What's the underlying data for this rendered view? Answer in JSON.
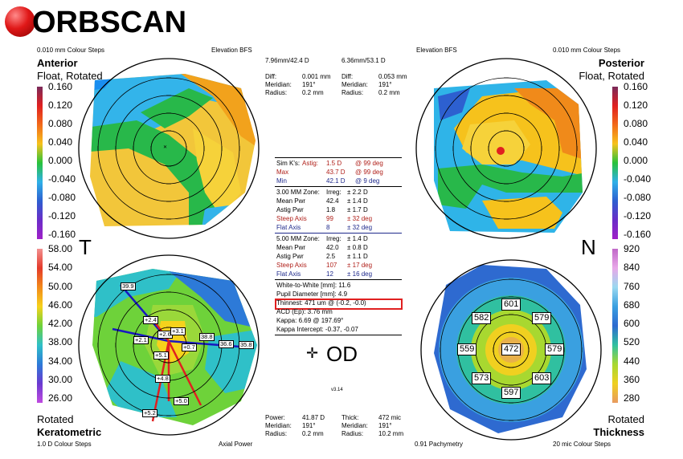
{
  "brand": {
    "name": "ORBSCAN"
  },
  "anterior": {
    "steps": "0.010 mm Colour Steps",
    "ref": "Elevation BFS",
    "title": "Anterior",
    "subtitle": "Float, Rotated",
    "bfs": "7.96mm/42.4 D",
    "diff_label": "Diff:",
    "diff": "0.001 mm",
    "meridian_label": "Meridian:",
    "meridian": "191°",
    "radius_label": "Radius:",
    "radius": "0.2 mm"
  },
  "posterior": {
    "steps": "0.010 mm Colour Steps",
    "ref": "Elevation BFS",
    "title": "Posterior",
    "subtitle": "Float, Rotated",
    "bfs": "6.36mm/53.1 D",
    "diff_label": "Diff:",
    "diff": "0.053 mm",
    "meridian_label": "Meridian:",
    "meridian": "191°",
    "radius_label": "Radius:",
    "radius": "0.2 mm"
  },
  "elevation_scale": {
    "labels": [
      "0.160",
      "0.120",
      "0.080",
      "0.040",
      "0.000",
      "-0.040",
      "-0.080",
      "-0.120",
      "-0.160"
    ],
    "colors": [
      "#7a2a5a",
      "#e02020",
      "#f26a1a",
      "#f6c21c",
      "#28c23a",
      "#2fb0e8",
      "#2d5fd0",
      "#6a2dc8",
      "#a020c8"
    ]
  },
  "kerato_scale": {
    "labels": [
      "58.00",
      "54.00",
      "50.00",
      "46.00",
      "42.00",
      "38.00",
      "34.00",
      "30.00",
      "26.00"
    ],
    "colors": [
      "#f29090",
      "#e43a2a",
      "#f28a1a",
      "#f6d21c",
      "#6ed23a",
      "#2fc0c8",
      "#2d7ad8",
      "#6a3ad0",
      "#c04ae0"
    ]
  },
  "pachy_scale": {
    "labels": [
      "920",
      "840",
      "760",
      "680",
      "600",
      "520",
      "440",
      "360",
      "280"
    ],
    "colors": [
      "#c068c8",
      "#e8a8e8",
      "#9ad8f0",
      "#3aa0e0",
      "#2e6ad0",
      "#30c0a0",
      "#a8d830",
      "#f0d020",
      "#e89a60"
    ]
  },
  "side": {
    "temporal": "T",
    "nasal": "N"
  },
  "center": {
    "simk_label": "Sim K's:",
    "astig_label": "Astig:",
    "astig": "1.5 D",
    "astig_axis": "@ 99 deg",
    "max_label": "Max",
    "max": "43.7 D",
    "max_axis": "@ 99 deg",
    "min_label": "Min",
    "min": "42.1 D",
    "min_axis": "@ 9 deg",
    "zone3_label": "3.00 MM Zone:",
    "irreg_label": "Irreg:",
    "zone3_irreg": "± 2.2 D",
    "mean_label": "Mean Pwr",
    "zone3_mean": "42.4",
    "zone3_mean_sd": "± 1.4 D",
    "astigpwr_label": "Astig Pwr",
    "zone3_astig": "1.8",
    "zone3_astig_sd": "± 1.7 D",
    "steep_label": "Steep Axis",
    "zone3_steep": "99",
    "zone3_steep_sd": "± 32 deg",
    "flat_label": "Flat Axis",
    "zone3_flat": "8",
    "zone3_flat_sd": "± 32 deg",
    "zone5_label": "5.00 MM Zone:",
    "zone5_irreg": "± 1.4 D",
    "zone5_mean": "42.0",
    "zone5_mean_sd": "± 0.8 D",
    "zone5_astig": "2.5",
    "zone5_astig_sd": "± 1.1 D",
    "zone5_steep": "107",
    "zone5_steep_sd": "± 17 deg",
    "zone5_flat": "12",
    "zone5_flat_sd": "± 16 deg",
    "wtw": "White-to-White [mm]: 11.6",
    "pupil": "Pupil Diameter [mm]: 4.9",
    "thinnest": "Thinnest: 471 um @ (-0.2, -0.0)",
    "acd": "ACD (Ep): 3.76 mm",
    "kappa": "Kappa: 6.69 @ 197.69°",
    "kappa_int": "Kappa Intercept: -0.37, -0.07",
    "eye": "OD",
    "version": "v3.14"
  },
  "keratometric": {
    "title": "Keratometric",
    "rotated": "Rotated",
    "steps": "1.0 D Colour Steps",
    "ref": "Axial Power",
    "power_label": "Power:",
    "power": "41.87 D",
    "meridian_label": "Meridian:",
    "meridian": "191°",
    "radius_label": "Radius:",
    "radius": "0.2 mm",
    "map_labels": [
      "39.9",
      "+2.4",
      "+2.6",
      "+3.1",
      "+2.1",
      "38.8",
      "36.6",
      "35.8",
      "+5.1",
      "+0.7",
      "+4.8",
      "+5.0",
      "+5.2"
    ]
  },
  "thickness": {
    "title": "Thickness",
    "rotated": "Rotated",
    "steps": "20 mic Colour Steps",
    "ref": "0.91 Pachymetry",
    "thick_label": "Thick:",
    "thick": "472 mic",
    "meridian_label": "Meridian:",
    "meridian": "191°",
    "radius_label": "Radius:",
    "radius": "10.2 mm",
    "values": {
      "center": "472",
      "top": "601",
      "bottom": "597",
      "left": "559",
      "right": "579",
      "ul": "582",
      "ur": "579",
      "ll": "573",
      "lr": "603"
    }
  }
}
